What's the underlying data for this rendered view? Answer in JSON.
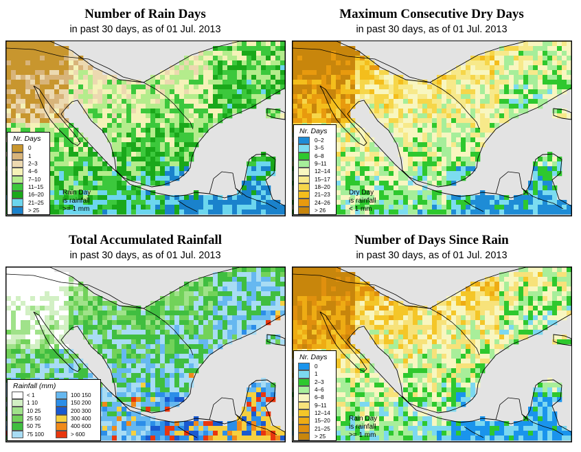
{
  "panels": [
    {
      "id": "rain_days",
      "title": "Number of Rain Days",
      "subtitle": "in past 30 days, as of  01 Jul. 2013",
      "legend_title": "Nr. Days",
      "legend": [
        {
          "label": "0",
          "color": "#c8962e"
        },
        {
          "label": "1",
          "color": "#d8b47a"
        },
        {
          "label": "2–3",
          "color": "#ecd9b0"
        },
        {
          "label": "4–6",
          "color": "#f5f2b8"
        },
        {
          "label": "7–10",
          "color": "#b4ec8c"
        },
        {
          "label": "11–15",
          "color": "#3cc83c"
        },
        {
          "label": "16–20",
          "color": "#1aa81a"
        },
        {
          "label": "21–25",
          "color": "#6cd6ee"
        },
        {
          "label": "> 25",
          "color": "#1a82cc"
        }
      ],
      "note": [
        "Rain Day",
        "is rainfall",
        ">= 1 mm"
      ]
    },
    {
      "id": "dry_days",
      "title": "Maximum Consecutive Dry Days",
      "subtitle": "in past 30 days, as of  01 Jul. 2013",
      "legend_title": "Nr. Days",
      "legend": [
        {
          "label": "0–2",
          "color": "#1e8cd6"
        },
        {
          "label": "3–5",
          "color": "#7cdcf0"
        },
        {
          "label": "6–8",
          "color": "#2ec82e"
        },
        {
          "label": "9–11",
          "color": "#a6ee9a"
        },
        {
          "label": "12–14",
          "color": "#f8f6c0"
        },
        {
          "label": "15–17",
          "color": "#f7e98a"
        },
        {
          "label": "18–20",
          "color": "#f6d64a"
        },
        {
          "label": "21–23",
          "color": "#f4be1c"
        },
        {
          "label": "24–26",
          "color": "#e89a0e"
        },
        {
          "label": "> 26",
          "color": "#c8860c"
        }
      ],
      "note": [
        "Dry Day",
        "is rainfall",
        "< 1 mm"
      ]
    },
    {
      "id": "total_rainfall",
      "title": "Total Accumulated Rainfall",
      "subtitle": "in past 30 days, as of  01 Jul. 2013",
      "legend_title": "Rainfall (mm)",
      "legend": [
        {
          "label": "< 1",
          "color": "#ffffff"
        },
        {
          "label": "1   10",
          "color": "#d2f0c4"
        },
        {
          "label": "10   25",
          "color": "#a0e28a"
        },
        {
          "label": "25   50",
          "color": "#72d25a"
        },
        {
          "label": "50   75",
          "color": "#40be40"
        },
        {
          "label": "75   100",
          "color": "#a8dcf4"
        },
        {
          "label": "100   150",
          "color": "#66b8f0"
        },
        {
          "label": "150   200",
          "color": "#2c8ee8"
        },
        {
          "label": "200   300",
          "color": "#1a5ad0"
        },
        {
          "label": "300   400",
          "color": "#f6d040"
        },
        {
          "label": "400   600",
          "color": "#f08a1a"
        },
        {
          "label": "> 600",
          "color": "#e8360e"
        }
      ]
    },
    {
      "id": "since_rain",
      "title": "Number of Days Since Rain",
      "subtitle": "in past 30 days, as of  01 Jul. 2013",
      "legend_title": "Nr. Days",
      "legend": [
        {
          "label": "0",
          "color": "#1a94ec"
        },
        {
          "label": "1",
          "color": "#7cd8f0"
        },
        {
          "label": "2–3",
          "color": "#2ec82e"
        },
        {
          "label": "4–6",
          "color": "#a8ee9a"
        },
        {
          "label": "6–8",
          "color": "#f8f6c0"
        },
        {
          "label": "9–11",
          "color": "#f7e27a"
        },
        {
          "label": "12–14",
          "color": "#f4c628"
        },
        {
          "label": "15–20",
          "color": "#eeac14"
        },
        {
          "label": "21–25",
          "color": "#e0900e"
        },
        {
          "label": "> 25",
          "color": "#c8860c"
        }
      ],
      "note": [
        "Rain Day",
        "is rainfall",
        ">= 1 mm"
      ]
    }
  ]
}
